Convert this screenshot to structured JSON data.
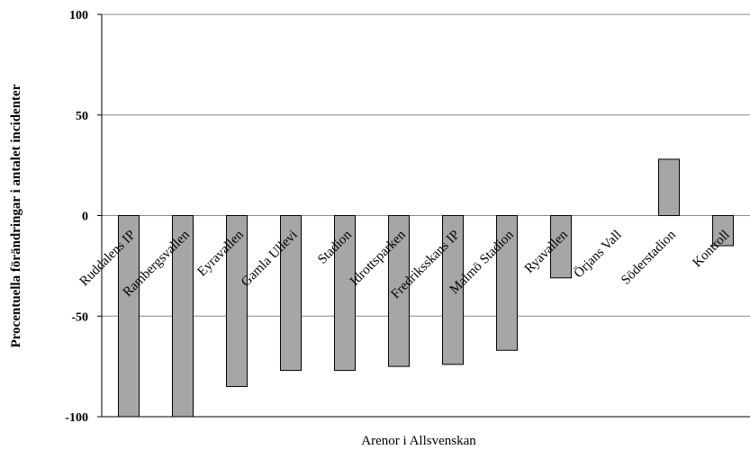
{
  "chart_data": {
    "type": "bar",
    "categories": [
      "Ruddalens IP",
      "Rambergsvallen",
      "Eyravallen",
      "Gamla Ullevi",
      "Stadion",
      "Idrottsparken",
      "Fredriksskans IP",
      "Malmö Stadion",
      "Ryavallen",
      "Örjans Vall",
      "Söderstadion",
      "Kontroll"
    ],
    "values": [
      -100,
      -100,
      -85,
      -77,
      -77,
      -75,
      -74,
      -67,
      -31,
      0,
      28,
      -15
    ],
    "xlabel": "Arenor i Allsvenskan",
    "ylabel": "Procentuella förändringar i antalet incidenter",
    "ylim": [
      -100,
      100
    ],
    "yticks": [
      100,
      50,
      0,
      -50,
      -100
    ],
    "grid": true,
    "bar_color": "#a6a6a6",
    "edge_color": "#000000"
  }
}
